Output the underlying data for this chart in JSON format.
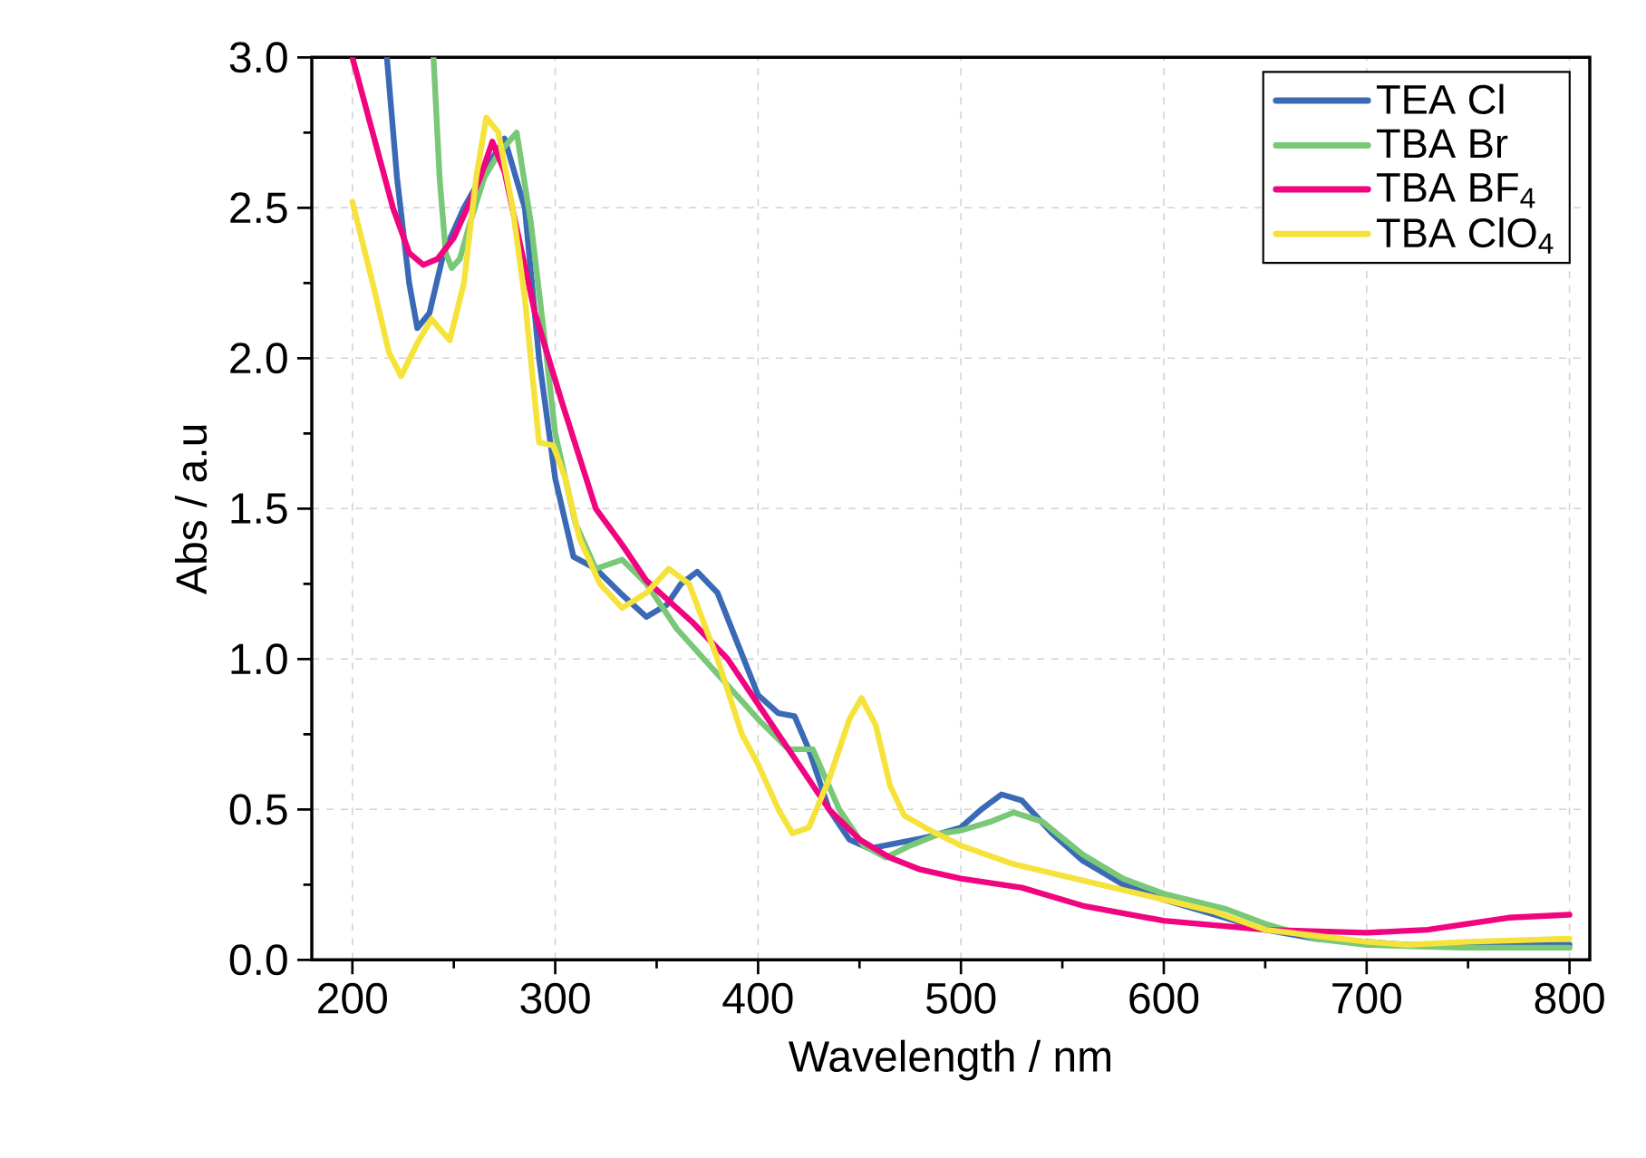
{
  "chart_data": {
    "type": "line",
    "xlabel": "Wavelength / nm",
    "ylabel": "Abs / a.u",
    "xlim": [
      180,
      810
    ],
    "ylim": [
      0,
      3.0
    ],
    "xticks": [
      200,
      300,
      400,
      500,
      600,
      700,
      800
    ],
    "yticks": [
      {
        "value": 0,
        "label": "0.0"
      },
      {
        "value": 0.5,
        "label": "0.5"
      },
      {
        "value": 1,
        "label": "1.0"
      },
      {
        "value": 1.5,
        "label": "1.5"
      },
      {
        "value": 2,
        "label": "2.0"
      },
      {
        "value": 2.5,
        "label": "2.5"
      },
      {
        "value": 3,
        "label": "3.0"
      }
    ],
    "grid": true,
    "legend": "top right",
    "marker": "none",
    "line_style": "solid",
    "series": [
      {
        "name": "TEA Cl",
        "color": "#3a6ab5",
        "x": [
          217,
          222,
          228,
          232,
          238,
          245,
          255,
          265,
          275,
          285,
          292,
          300,
          309,
          320,
          332,
          345,
          355,
          362,
          370,
          380,
          390,
          400,
          410,
          418,
          425,
          435,
          445,
          455,
          470,
          485,
          500,
          510,
          520,
          530,
          545,
          560,
          580,
          600,
          625,
          650,
          675,
          700,
          720,
          750,
          800
        ],
        "values": [
          3.0,
          2.6,
          2.25,
          2.1,
          2.15,
          2.35,
          2.5,
          2.62,
          2.73,
          2.5,
          2.0,
          1.6,
          1.34,
          1.3,
          1.22,
          1.14,
          1.18,
          1.25,
          1.29,
          1.22,
          1.05,
          0.88,
          0.82,
          0.81,
          0.7,
          0.5,
          0.4,
          0.37,
          0.39,
          0.41,
          0.44,
          0.5,
          0.55,
          0.53,
          0.42,
          0.33,
          0.25,
          0.2,
          0.15,
          0.1,
          0.07,
          0.06,
          0.05,
          0.05,
          0.05
        ]
      },
      {
        "name": "TBA Br",
        "color": "#78c878",
        "x": [
          240,
          243,
          246,
          249,
          253,
          258,
          265,
          272,
          281,
          288,
          295,
          300,
          310,
          320,
          333,
          345,
          360,
          380,
          400,
          415,
          427,
          440,
          452,
          463,
          475,
          490,
          500,
          515,
          526,
          540,
          560,
          580,
          600,
          630,
          650,
          675,
          700,
          750,
          800
        ],
        "values": [
          3.0,
          2.6,
          2.35,
          2.3,
          2.33,
          2.45,
          2.6,
          2.68,
          2.75,
          2.45,
          2.05,
          1.75,
          1.45,
          1.3,
          1.33,
          1.25,
          1.1,
          0.95,
          0.8,
          0.7,
          0.7,
          0.5,
          0.38,
          0.34,
          0.38,
          0.42,
          0.43,
          0.46,
          0.49,
          0.46,
          0.35,
          0.27,
          0.22,
          0.17,
          0.12,
          0.07,
          0.05,
          0.04,
          0.04
        ]
      },
      {
        "name": "TBA BF$_{4}$",
        "color": "#f0047f",
        "x": [
          200,
          210,
          220,
          228,
          235,
          242,
          250,
          258,
          263,
          269,
          275,
          282,
          290,
          303,
          320,
          333,
          345,
          368,
          385,
          400,
          420,
          435,
          450,
          465,
          480,
          500,
          530,
          560,
          600,
          650,
          700,
          730,
          770,
          800
        ],
        "values": [
          3.0,
          2.75,
          2.5,
          2.35,
          2.31,
          2.33,
          2.4,
          2.52,
          2.6,
          2.72,
          2.62,
          2.4,
          2.15,
          1.86,
          1.5,
          1.38,
          1.26,
          1.12,
          1.0,
          0.85,
          0.65,
          0.5,
          0.4,
          0.34,
          0.3,
          0.27,
          0.24,
          0.18,
          0.13,
          0.1,
          0.09,
          0.1,
          0.14,
          0.15
        ]
      },
      {
        "name": "TBA ClO$_{4}$",
        "color": "#f5e33b",
        "x": [
          200,
          210,
          218,
          224,
          232,
          239,
          244,
          248,
          255,
          261,
          266,
          272,
          279,
          285,
          292,
          299,
          305,
          312,
          322,
          333,
          345,
          356,
          366,
          380,
          392,
          400,
          410,
          417,
          425,
          435,
          445,
          451,
          458,
          465,
          472,
          485,
          500,
          525,
          550,
          575,
          600,
          625,
          650,
          675,
          700,
          720,
          750,
          800
        ],
        "values": [
          2.52,
          2.25,
          2.02,
          1.94,
          2.05,
          2.13,
          2.09,
          2.06,
          2.25,
          2.6,
          2.8,
          2.75,
          2.5,
          2.2,
          1.72,
          1.71,
          1.6,
          1.4,
          1.25,
          1.17,
          1.22,
          1.3,
          1.25,
          1.0,
          0.75,
          0.65,
          0.5,
          0.42,
          0.44,
          0.6,
          0.8,
          0.87,
          0.78,
          0.58,
          0.48,
          0.43,
          0.38,
          0.32,
          0.28,
          0.24,
          0.2,
          0.16,
          0.1,
          0.08,
          0.06,
          0.05,
          0.06,
          0.07
        ]
      }
    ]
  }
}
